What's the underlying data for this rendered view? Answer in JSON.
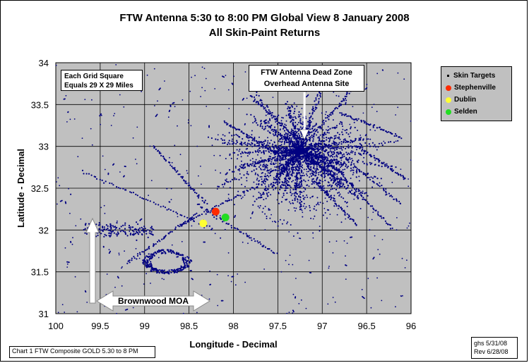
{
  "chart_data": {
    "type": "scatter",
    "title": "FTW Antenna  5:30 to  8:00 PM  Global View   8 January 2008",
    "subtitle": "All Skin-Paint Returns",
    "xlabel": "Longitude - Decimal",
    "ylabel": "Latitude - Decimal",
    "x_reversed": true,
    "xlim": [
      100,
      96
    ],
    "ylim": [
      31,
      34
    ],
    "x_ticks": [
      "100",
      "99.5",
      "99",
      "98.5",
      "98",
      "97.5",
      "97",
      "96.5",
      "96"
    ],
    "y_ticks": [
      "31",
      "31.5",
      "32",
      "32.5",
      "33",
      "33.5",
      "34"
    ],
    "grid": true,
    "legend_position": "right",
    "series": [
      {
        "name": "Skin  Targets",
        "color": "#000080",
        "kind": "scatter-dense",
        "center": [
          97.25,
          32.95
        ],
        "notes": "dense cluster of returns around the antenna site"
      },
      {
        "name": "Stephenville",
        "color": "#ff2a00",
        "x": [
          98.2
        ],
        "y": [
          32.22
        ]
      },
      {
        "name": "Dublin",
        "color": "#ffff33",
        "x": [
          98.34
        ],
        "y": [
          32.08
        ]
      },
      {
        "name": "Selden",
        "color": "#22dd22",
        "x": [
          98.09
        ],
        "y": [
          32.15
        ]
      }
    ],
    "annotations": {
      "grid_note": [
        "Each Grid Square",
        "Equals 29 X 29 Miles"
      ],
      "deadzone": [
        "FTW Antenna Dead Zone",
        "Overhead  Antenna Site"
      ],
      "moa": "Brownwood MOA"
    }
  },
  "footer": {
    "left": "Chart 1     FTW Composite GOLD  5.30 to  8 PM",
    "right_line1": "ghs  5/31/08",
    "right_line2": "Rev 6/28/08"
  },
  "colors": {
    "plot_bg": "#c0c0c0",
    "points": "#000080",
    "grid": "#000000"
  }
}
